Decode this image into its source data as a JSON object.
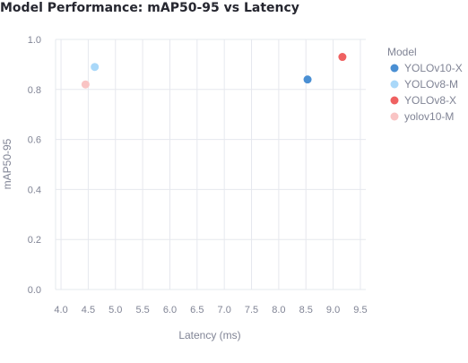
{
  "chart_data": {
    "type": "scatter",
    "title": "Model Performance: mAP50-95 vs Latency",
    "xlabel": "Latency (ms)",
    "ylabel": "mAP50-95",
    "xlim": [
      3.9,
      9.6
    ],
    "ylim": [
      0.0,
      1.0
    ],
    "xticks": [
      "4.0",
      "4.5",
      "5.0",
      "5.5",
      "6.0",
      "6.5",
      "7.0",
      "7.5",
      "8.0",
      "8.5",
      "9.0",
      "9.5"
    ],
    "yticks": [
      "0.0",
      "0.2",
      "0.4",
      "0.6",
      "0.8",
      "1.0"
    ],
    "grid": true,
    "legend_title": "Model",
    "legend_position": "right",
    "series": [
      {
        "name": "YOLOv10-X",
        "color": "#4a8fd3",
        "points": [
          {
            "x": 8.53,
            "y": 0.84
          }
        ]
      },
      {
        "name": "YOLOv8-M",
        "color": "#a9d8f9",
        "points": [
          {
            "x": 4.62,
            "y": 0.89
          }
        ]
      },
      {
        "name": "YOLOv8-X",
        "color": "#ef6161",
        "points": [
          {
            "x": 9.17,
            "y": 0.93
          }
        ]
      },
      {
        "name": "yolov10-M",
        "color": "#f9c4c4",
        "points": [
          {
            "x": 4.45,
            "y": 0.82
          }
        ]
      }
    ]
  }
}
